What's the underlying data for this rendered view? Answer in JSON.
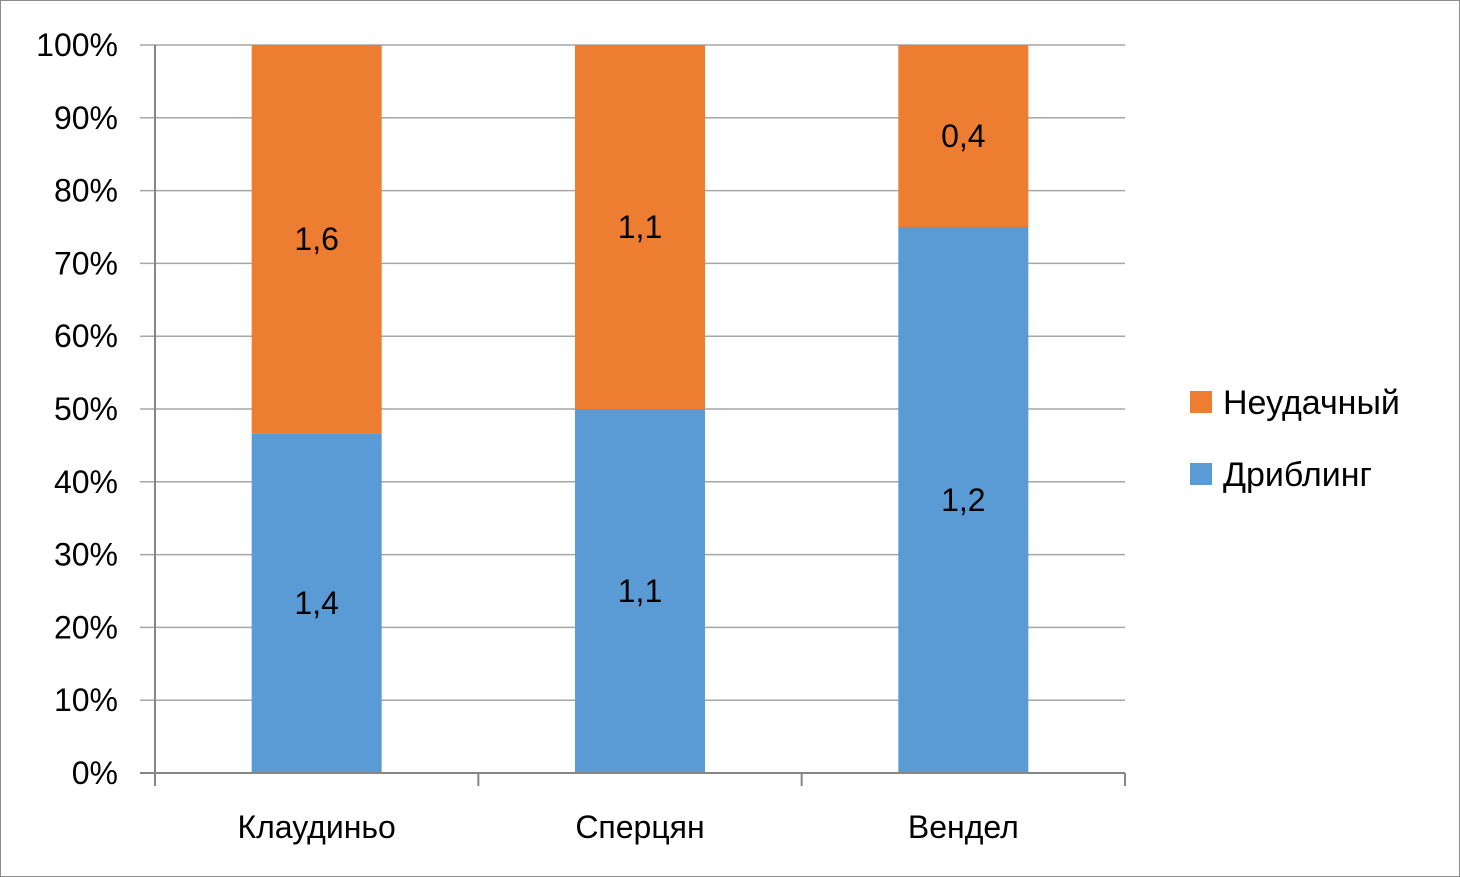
{
  "chart_data": {
    "type": "bar",
    "stacked": true,
    "percent_stacked": true,
    "categories": [
      "Клаудиньо",
      "Сперцян",
      "Вендел"
    ],
    "series": [
      {
        "name": "Дриблинг",
        "values": [
          1.4,
          1.1,
          1.2
        ],
        "labels": [
          "1,4",
          "1,1",
          "1,2"
        ],
        "color": "#5b9bd5"
      },
      {
        "name": "Неудачный",
        "values": [
          1.6,
          1.1,
          0.4
        ],
        "labels": [
          "1,6",
          "1,1",
          "0,4"
        ],
        "color": "#ed7d31"
      }
    ],
    "yticks": [
      "0%",
      "10%",
      "20%",
      "30%",
      "40%",
      "50%",
      "60%",
      "70%",
      "80%",
      "90%",
      "100%"
    ],
    "ylim": [
      0,
      100
    ],
    "grid": true,
    "legend": "right",
    "title": "",
    "xlabel": "",
    "ylabel": ""
  }
}
